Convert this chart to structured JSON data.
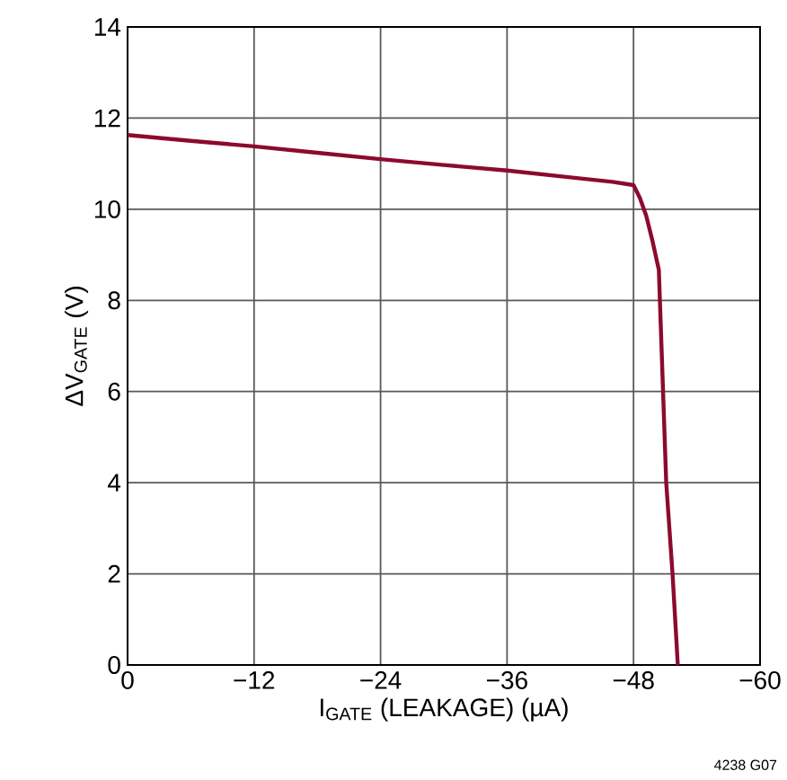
{
  "chart_data": {
    "type": "line",
    "xlabel": "I$_{GATE}$ (LEAKAGE) (µA)",
    "ylabel": "ΔV$_{GATE}$ (V)",
    "x": [
      0,
      -6,
      -12,
      -18,
      -24,
      -30,
      -36,
      -42,
      -46,
      -48,
      -48.6,
      -49.2,
      -49.8,
      -50.4,
      -50.8,
      -51.1,
      -51.7,
      -52.2
    ],
    "series": [
      {
        "color": "#8c0a2e",
        "values": [
          11.63,
          11.5,
          11.38,
          11.24,
          11.1,
          10.97,
          10.85,
          10.7,
          10.6,
          10.53,
          10.25,
          9.86,
          9.3,
          8.67,
          6,
          4,
          2,
          0
        ]
      }
    ],
    "xlim": [
      0,
      -60
    ],
    "ylim": [
      0,
      14
    ],
    "xticks": [
      0,
      {
        "value": -12,
        "label": "−12"
      },
      {
        "value": -24,
        "label": "−24"
      },
      {
        "value": -36,
        "label": "−36"
      },
      {
        "value": -48,
        "label": "−48"
      },
      {
        "value": -60,
        "label": "−60"
      }
    ],
    "yticks": [
      0,
      2,
      4,
      6,
      8,
      10,
      12,
      14
    ],
    "grid": true,
    "marker": "none",
    "line_style": "solid",
    "annotations": [
      "4238 G07"
    ]
  }
}
